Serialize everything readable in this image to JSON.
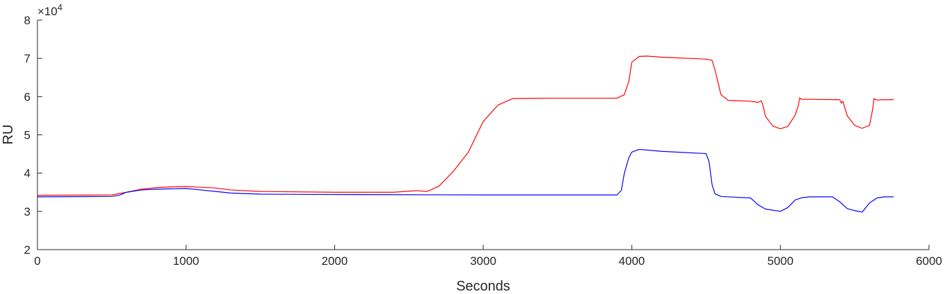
{
  "chart_data": {
    "type": "line",
    "title": "",
    "xlabel": "Seconds",
    "ylabel": "RU",
    "xlim": [
      0,
      6000
    ],
    "ylim": [
      20000,
      80000
    ],
    "x_ticks": [
      0,
      1000,
      2000,
      3000,
      4000,
      5000,
      6000
    ],
    "x_tick_labels": [
      "0",
      "1000",
      "2000",
      "3000",
      "4000",
      "5000",
      "6000"
    ],
    "y_ticks": [
      20000,
      30000,
      40000,
      50000,
      60000,
      70000,
      80000
    ],
    "y_tick_labels": [
      "2",
      "3",
      "4",
      "5",
      "6",
      "7",
      "8"
    ],
    "y_exponent_label": "×10",
    "y_exponent_power": "4",
    "grid": false,
    "series": [
      {
        "color": "#ff0000",
        "x": [
          0,
          500,
          600,
          700,
          800,
          900,
          1000,
          1100,
          1200,
          1300,
          1500,
          2000,
          2400,
          2500,
          2560,
          2620,
          2700,
          2800,
          2900,
          3000,
          3100,
          3200,
          3500,
          3900,
          3950,
          3980,
          4000,
          4050,
          4100,
          4200,
          4500,
          4540,
          4560,
          4600,
          4650,
          4800,
          4850,
          4870,
          4880,
          4900,
          4950,
          5000,
          5050,
          5100,
          5120,
          5130,
          5140,
          5200,
          5400,
          5410,
          5420,
          5450,
          5500,
          5550,
          5600,
          5620,
          5630,
          5640,
          5660,
          5680,
          5760
        ],
        "y": [
          34200,
          34300,
          35000,
          35800,
          36200,
          36400,
          36500,
          36300,
          36100,
          35600,
          35200,
          35000,
          35000,
          35300,
          35400,
          35200,
          36500,
          40500,
          45500,
          53500,
          57800,
          59500,
          59600,
          59600,
          60500,
          64000,
          69000,
          70500,
          70600,
          70300,
          69800,
          69500,
          67000,
          60500,
          59000,
          58800,
          58500,
          58900,
          58100,
          54800,
          52300,
          51600,
          52200,
          55200,
          57600,
          59700,
          59300,
          59300,
          59200,
          58300,
          58800,
          55000,
          52500,
          51700,
          52500,
          56500,
          59500,
          59200,
          59100,
          59200,
          59200
        ]
      },
      {
        "color": "#0000ff",
        "x": [
          0,
          500,
          550,
          600,
          700,
          800,
          900,
          1000,
          1100,
          1200,
          1300,
          1500,
          2000,
          3000,
          3900,
          3930,
          3950,
          3980,
          4000,
          4050,
          4200,
          4500,
          4520,
          4540,
          4560,
          4600,
          4700,
          4800,
          4850,
          4900,
          5000,
          5050,
          5100,
          5150,
          5200,
          5350,
          5400,
          5450,
          5500,
          5550,
          5600,
          5650,
          5700,
          5760
        ],
        "y": [
          33800,
          33900,
          34200,
          35000,
          35600,
          35800,
          35900,
          36000,
          35600,
          35200,
          34800,
          34500,
          34400,
          34300,
          34300,
          35500,
          40000,
          44000,
          45500,
          46200,
          45700,
          45100,
          43000,
          37000,
          34600,
          33900,
          33700,
          33500,
          31700,
          30600,
          30000,
          31000,
          33000,
          33600,
          33800,
          33800,
          32500,
          30700,
          30200,
          29800,
          32200,
          33500,
          33800,
          33800
        ]
      }
    ]
  }
}
